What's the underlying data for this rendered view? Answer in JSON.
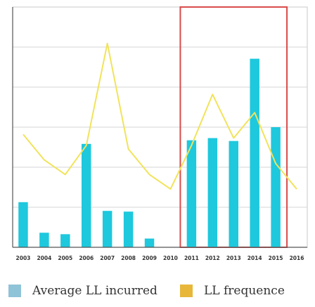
{
  "chart_data": {
    "type": "bar",
    "categories": [
      "2003",
      "2004",
      "2005",
      "2006",
      "2007",
      "2008",
      "2009",
      "2010",
      "2011",
      "2012",
      "2013",
      "2014",
      "2015",
      "2016"
    ],
    "series": [
      {
        "name": "Average LL incurred",
        "type": "bar",
        "color": "#1ec8dd",
        "values": [
          62,
          20,
          18,
          142,
          50,
          49,
          12,
          0,
          147,
          150,
          146,
          259,
          165,
          0
        ]
      },
      {
        "name": "LL frequence",
        "type": "line",
        "color": "#f1e35a",
        "values": [
          155,
          120,
          100,
          140,
          280,
          135,
          100,
          80,
          140,
          210,
          150,
          185,
          115,
          80
        ]
      }
    ],
    "ylim": [
      0,
      330
    ],
    "grid": true,
    "legend_position": "bottom",
    "highlight": {
      "from": "2011",
      "to": "2015",
      "color": "#d94b4b"
    }
  },
  "legend": {
    "items": [
      {
        "label": "Average LL incurred",
        "color": "#8fc3d8"
      },
      {
        "label": "LL frequence",
        "color": "#e8b73a"
      }
    ]
  }
}
